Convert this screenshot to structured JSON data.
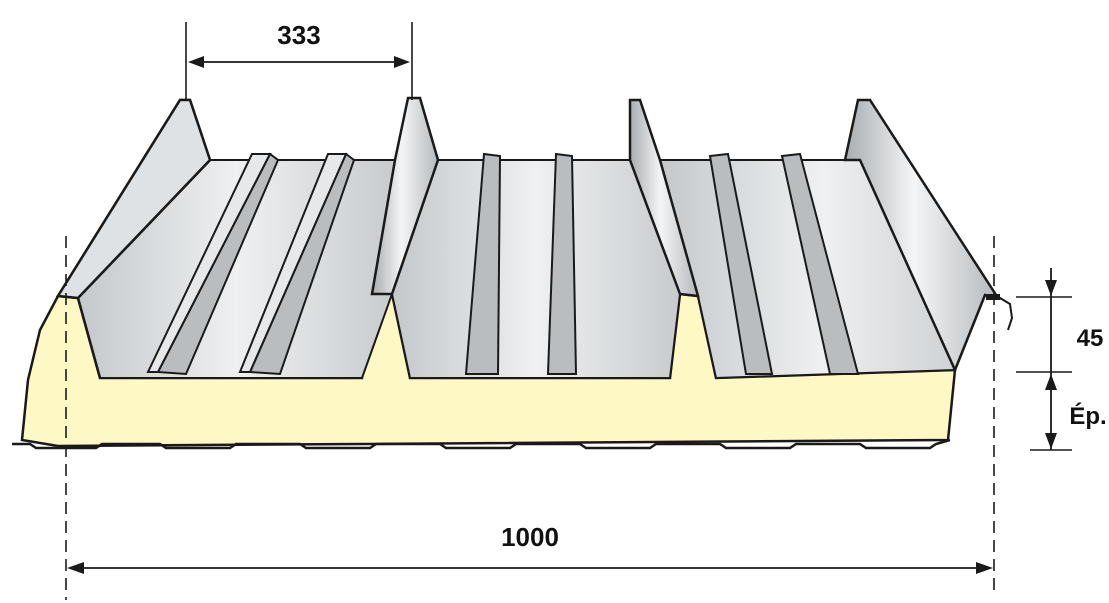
{
  "dimensions": {
    "rib_spacing": "333",
    "rib_height": "45",
    "thickness": "Ép.",
    "total_width": "1000"
  },
  "colors": {
    "steel_light": "#eceeef",
    "steel_mid": "#c9ccce",
    "steel_dark": "#9ea2a5",
    "foam": "#fdf8c4",
    "outline": "#1a1a1a"
  }
}
